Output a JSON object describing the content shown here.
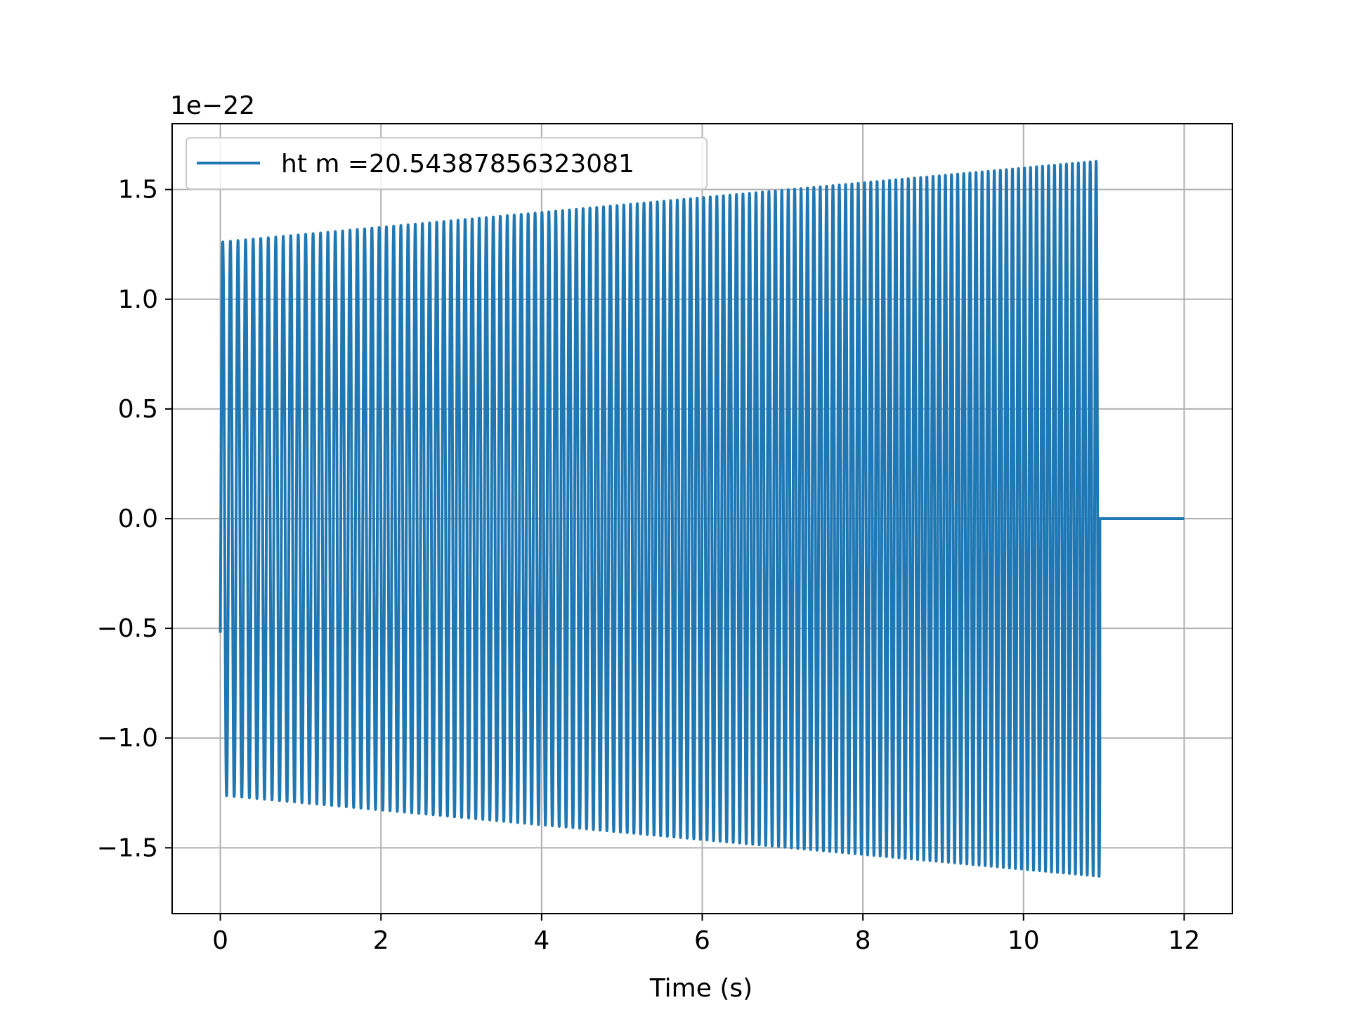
{
  "chart_data": {
    "type": "line",
    "title": "",
    "xlabel": "Time (s)",
    "ylabel": "",
    "offset_label": "1e−22",
    "xlim": [
      -0.6,
      12.6
    ],
    "ylim": [
      -1.8,
      1.8
    ],
    "x_ticks": [
      0,
      2,
      4,
      6,
      8,
      10,
      12
    ],
    "x_tick_labels": [
      "0",
      "2",
      "4",
      "6",
      "8",
      "10",
      "12"
    ],
    "y_ticks": [
      -1.5,
      -1.0,
      -0.5,
      0.0,
      0.5,
      1.0,
      1.5
    ],
    "y_tick_labels": [
      "−1.5",
      "−1.0",
      "−0.5",
      "0.0",
      "0.5",
      "1.0",
      "1.5"
    ],
    "grid": true,
    "legend_position": "upper-left",
    "series": [
      {
        "name": "ht m =20.54387856323081",
        "color": "#1f77b4",
        "signal": {
          "t_start": 0.0,
          "t_merge": 10.95,
          "t_end": 12.0,
          "initial_value": -0.52,
          "amplitude_start": 1.26,
          "amplitude_end": 1.63,
          "frequency_start_hz": 10.5,
          "frequency_end_hz": 13.6,
          "value_after_merge": 0.0
        }
      }
    ]
  }
}
